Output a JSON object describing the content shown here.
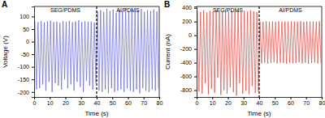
{
  "chart_data": [
    {
      "type": "line",
      "label": "A",
      "x_label": "Time (s)",
      "y_label": "Voltage (V)",
      "annotations": [
        {
          "text": "SEG/PDMS"
        },
        {
          "text": "Al/PDMS"
        }
      ],
      "divider": 40,
      "xlim": [
        0,
        80
      ],
      "xticks": [
        0,
        10,
        20,
        30,
        40,
        50,
        60,
        70,
        80
      ],
      "ylim": [
        -220,
        140
      ],
      "yticks": [
        -200,
        -150,
        -100,
        -50,
        0,
        50,
        100
      ],
      "grid": false,
      "x": [
        0.5,
        1.5,
        2.5,
        3.5,
        4.5,
        5.5,
        6.5,
        7.5,
        8.5,
        9.5,
        10.5,
        11.5,
        12.5,
        13.5,
        14.5,
        15.5,
        16.5,
        17.5,
        18.5,
        19.5,
        20.5,
        21.5,
        22.5,
        23.5,
        24.5,
        25.5,
        26.5,
        27.5,
        28.5,
        29.5,
        30.5,
        31.5,
        32.5,
        33.5,
        34.5,
        35.5,
        36.5,
        37.5,
        38.5,
        39.5,
        40.5,
        41.5,
        42.5,
        43.5,
        44.5,
        45.5,
        46.5,
        47.5,
        48.5,
        49.5,
        50.5,
        51.5,
        52.5,
        53.5,
        54.5,
        55.5,
        56.5,
        57.5,
        58.5,
        59.5,
        60.5,
        61.5,
        62.5,
        63.5,
        64.5,
        65.5,
        66.5,
        67.5,
        68.5,
        69.5,
        70.5,
        71.5,
        72.5,
        73.5,
        74.5,
        75.5,
        76.5,
        77.5,
        78.5,
        79.5
      ],
      "series": [
        {
          "color": "#6464dc",
          "values": [
            80,
            -190,
            78,
            -185,
            82,
            -170,
            76,
            -195,
            80,
            -160,
            84,
            -200,
            78,
            -165,
            80,
            -175,
            75,
            -190,
            82,
            -150,
            79,
            -185,
            83,
            -170,
            77,
            -195,
            80,
            -160,
            85,
            -180,
            78,
            -200,
            81,
            -155,
            79,
            -175,
            80,
            -190,
            76,
            -165,
            120,
            -195,
            125,
            -200,
            118,
            -190,
            130,
            -205,
            122,
            -185,
            128,
            -200,
            115,
            -195,
            126,
            -190,
            120,
            -200,
            132,
            -185,
            119,
            -195,
            127,
            -200,
            121,
            -190,
            124,
            -205,
            130,
            -185,
            118,
            -195,
            125,
            -200,
            122,
            -190,
            128,
            -195,
            120,
            -185
          ]
        }
      ]
    },
    {
      "type": "line",
      "label": "B",
      "x_label": "Time (s)",
      "y_label": "Current (nA)",
      "annotations": [
        {
          "text": "SEG/PDMS"
        },
        {
          "text": "Al/PDMS"
        }
      ],
      "divider": 40,
      "xlim": [
        0,
        80
      ],
      "xticks": [
        0,
        10,
        20,
        30,
        40,
        50,
        60,
        70,
        80
      ],
      "ylim": [
        -900,
        420
      ],
      "yticks": [
        -800,
        -600,
        -400,
        -200,
        0,
        200,
        400
      ],
      "grid": false,
      "x": [
        0.5,
        1.5,
        2.5,
        3.5,
        4.5,
        5.5,
        6.5,
        7.5,
        8.5,
        9.5,
        10.5,
        11.5,
        12.5,
        13.5,
        14.5,
        15.5,
        16.5,
        17.5,
        18.5,
        19.5,
        20.5,
        21.5,
        22.5,
        23.5,
        24.5,
        25.5,
        26.5,
        27.5,
        28.5,
        29.5,
        30.5,
        31.5,
        32.5,
        33.5,
        34.5,
        35.5,
        36.5,
        37.5,
        38.5,
        39.5,
        40.5,
        41.5,
        42.5,
        43.5,
        44.5,
        45.5,
        46.5,
        47.5,
        48.5,
        49.5,
        50.5,
        51.5,
        52.5,
        53.5,
        54.5,
        55.5,
        56.5,
        57.5,
        58.5,
        59.5,
        60.5,
        61.5,
        62.5,
        63.5,
        64.5,
        65.5,
        66.5,
        67.5,
        68.5,
        69.5,
        70.5,
        71.5,
        72.5,
        73.5,
        74.5,
        75.5,
        76.5,
        77.5,
        78.5,
        79.5
      ],
      "series": [
        {
          "color": "#e8463f",
          "values": [
            350,
            -820,
            340,
            -850,
            365,
            -700,
            335,
            -860,
            355,
            -780,
            345,
            -840,
            370,
            -620,
            338,
            -870,
            352,
            -800,
            360,
            -850,
            342,
            -760,
            356,
            -830,
            348,
            -880,
            362,
            -700,
            336,
            -850,
            358,
            -810,
            344,
            -860,
            366,
            -740,
            350,
            -840,
            340,
            -820,
            200,
            -410,
            195,
            -400,
            205,
            -415,
            198,
            -405,
            202,
            -395,
            196,
            -410,
            204,
            -400,
            199,
            -405,
            201,
            -415,
            197,
            -400,
            203,
            -410,
            200,
            -405,
            198,
            -395,
            205,
            -410,
            196,
            -400,
            202,
            -415,
            199,
            -405,
            201,
            -400,
            197,
            -410,
            203,
            -405
          ]
        }
      ]
    }
  ]
}
